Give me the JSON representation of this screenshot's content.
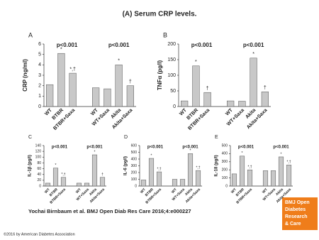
{
  "title": "(A) Serum CRP levels.",
  "citation": "Yochai Birnbaum et al. BMJ Open Diab Res Care 2016;4:e000227",
  "copyright": "©2016 by American Diabetes Association",
  "logo": [
    "BMJ Open",
    "Diabetes",
    "Research",
    "& Care"
  ],
  "chart_data": [
    {
      "type": "bar",
      "panel": "A",
      "y_label": "CRP (ng/ml)",
      "color": "#c8c8c8",
      "categories": [
        "WT",
        "BTBR",
        "BTBR+Saxa",
        null,
        "WT",
        "WT+Saxa",
        "Akita",
        "Akita+Saxa"
      ],
      "values": [
        2.1,
        5.1,
        3.2,
        null,
        1.8,
        1.7,
        4.0,
        2.0
      ],
      "annotations": [
        null,
        "*",
        "*,†",
        null,
        null,
        null,
        "*",
        "†"
      ],
      "p_labels": [
        "p<0.001",
        "p<0.001"
      ],
      "ylim": [
        0,
        6
      ],
      "yticks": [
        0,
        1,
        2,
        3,
        4,
        5,
        6
      ]
    },
    {
      "type": "bar",
      "panel": "B",
      "y_label": "TNFα (pg/l)",
      "color": "#c8c8c8",
      "categories": [
        "WT",
        "BTBR",
        "BTBR+Saxa",
        null,
        "WT",
        "WT+Saxa",
        "Akita",
        "Akita+Saxa"
      ],
      "values": [
        18,
        130,
        45,
        null,
        18,
        17,
        155,
        47
      ],
      "annotations": [
        null,
        "*",
        "†",
        null,
        null,
        null,
        "*",
        "†"
      ],
      "p_labels": [
        "p<0.001",
        "p<0.001"
      ],
      "ylim": [
        0,
        200
      ],
      "yticks": [
        0,
        50,
        100,
        150,
        200
      ]
    },
    {
      "type": "bar",
      "panel": "C",
      "y_label": "IL-1β (pg/l)",
      "color": "#c8c8c8",
      "categories": [
        "WT",
        "BTBR",
        "BTBR+Saxa",
        null,
        "WT",
        "WT+Saxa",
        "Akita",
        "Akita+Saxa"
      ],
      "values": [
        10,
        62,
        30,
        null,
        10,
        10,
        108,
        30
      ],
      "annotations": [
        null,
        "*",
        "*,†",
        null,
        null,
        null,
        "*",
        "†"
      ],
      "p_labels": [
        "p<0.001",
        "p<0.001"
      ],
      "ylim": [
        0,
        140
      ],
      "yticks": [
        0,
        20,
        40,
        60,
        80,
        100,
        120,
        140
      ]
    },
    {
      "type": "bar",
      "panel": "D",
      "y_label": "IL-6 (pg/l)",
      "color": "#c8c8c8",
      "categories": [
        "WT",
        "BTBR",
        "BTBR+Saxa",
        null,
        "WT",
        "WT+Saxa",
        "Akita",
        "Akita+Saxa"
      ],
      "values": [
        90,
        410,
        210,
        null,
        100,
        100,
        480,
        230
      ],
      "annotations": [
        null,
        "*",
        "*,†",
        null,
        null,
        null,
        "*",
        "*,†"
      ],
      "p_labels": [
        "p<0.001",
        "p<0.001"
      ],
      "ylim": [
        0,
        600
      ],
      "yticks": [
        0,
        100,
        200,
        300,
        400,
        500,
        600
      ]
    },
    {
      "type": "bar",
      "panel": "E",
      "y_label": "IL-18 (pg/l)",
      "color": "#c8c8c8",
      "categories": [
        "WT",
        "BTBR",
        "BTBR+Saxa",
        null,
        "WT",
        "WT+Saxa",
        "Akita",
        "Akita+Saxa"
      ],
      "values": [
        150,
        370,
        200,
        null,
        190,
        190,
        360,
        260
      ],
      "annotations": [
        null,
        "*",
        "*,†",
        null,
        null,
        null,
        "*",
        "*,†"
      ],
      "p_labels": [
        "p<0.001",
        "p<0.001"
      ],
      "ylim": [
        0,
        500
      ],
      "yticks": [
        0,
        100,
        200,
        300,
        400,
        500
      ]
    }
  ]
}
